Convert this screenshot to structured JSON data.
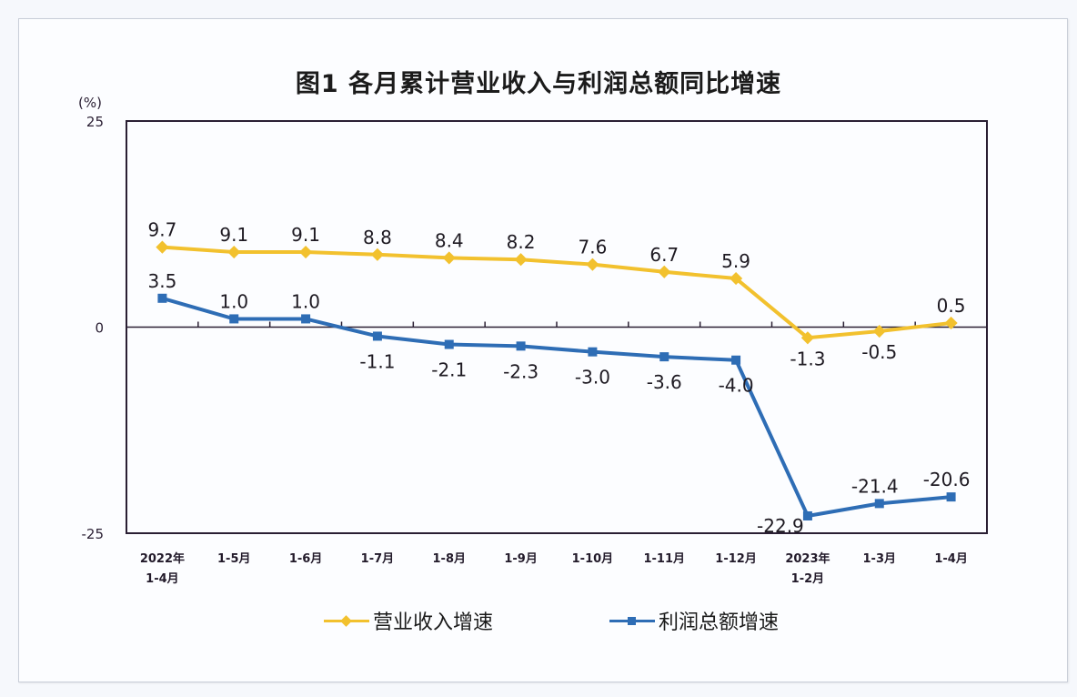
{
  "title": "图1  各月累计营业收入与利润总额同比增速",
  "colors": {
    "revenue": "#f2c12e",
    "profit": "#2e6db5",
    "axis": "#2a1f33",
    "background": "#fcfdff"
  },
  "legend": [
    {
      "label": "营业收入增速",
      "color": "#f2c12e"
    },
    {
      "label": "利润总额增速",
      "color": "#2e6db5"
    }
  ],
  "chart_data": {
    "type": "line",
    "title": "图1  各月累计营业收入与利润总额同比增速",
    "xlabel": "",
    "ylabel": "(%)",
    "ylim": [
      -25,
      25
    ],
    "yticks": [
      25,
      0,
      -25
    ],
    "grid": false,
    "legend_position": "bottom",
    "categories": [
      "2022年\n1-4月",
      "1-5月",
      "1-6月",
      "1-7月",
      "1-8月",
      "1-9月",
      "1-10月",
      "1-11月",
      "1-12月",
      "2023年\n1-2月",
      "1-3月",
      "1-4月"
    ],
    "series": [
      {
        "name": "营业收入增速",
        "color": "#f2c12e",
        "values": [
          9.7,
          9.1,
          9.1,
          8.8,
          8.4,
          8.2,
          7.6,
          6.7,
          5.9,
          -1.3,
          -0.5,
          0.5
        ]
      },
      {
        "name": "利润总额增速",
        "color": "#2e6db5",
        "values": [
          3.5,
          1.0,
          1.0,
          -1.1,
          -2.1,
          -2.3,
          -3.0,
          -3.6,
          -4.0,
          -22.9,
          -21.4,
          -20.6
        ]
      }
    ]
  }
}
